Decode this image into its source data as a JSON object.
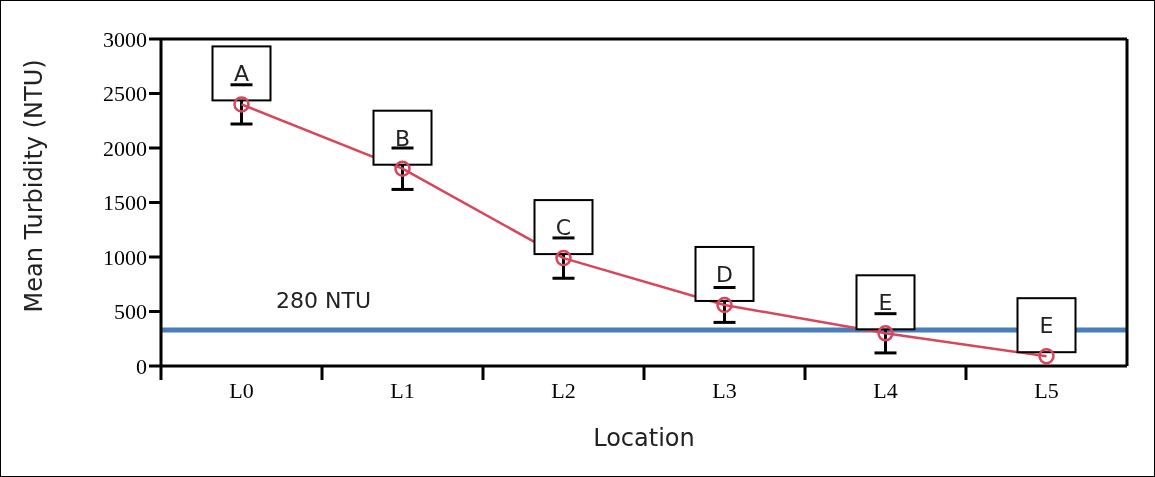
{
  "chart_data": {
    "type": "line",
    "xlabel": "Location",
    "ylabel": "Mean Turbidity (NTU)",
    "categories": [
      "L0",
      "L1",
      "L2",
      "L3",
      "L4",
      "L5"
    ],
    "series": [
      {
        "color": "#d9455a",
        "values": [
          2400,
          1810,
          990,
          560,
          300,
          90
        ],
        "errors": [
          180,
          190,
          185,
          160,
          180,
          null
        ]
      }
    ],
    "ylim": [
      0,
      3000
    ],
    "yticks": [
      0,
      500,
      1000,
      1500,
      2000,
      2500,
      3000
    ],
    "grid": false,
    "marker": "circle",
    "line_style": "solid",
    "ref_lines": [
      {
        "axis": "y",
        "value": 330,
        "label": "280 NTU",
        "color": "#4a7ebb"
      }
    ],
    "annotations": [
      {
        "text": "A",
        "x": "L0",
        "y": 2400
      },
      {
        "text": "B",
        "x": "L1",
        "y": 1810
      },
      {
        "text": "C",
        "x": "L2",
        "y": 990
      },
      {
        "text": "D",
        "x": "L3",
        "y": 560
      },
      {
        "text": "E",
        "x": "L4",
        "y": 300
      },
      {
        "text": "E",
        "x": "L5",
        "y": 90
      }
    ]
  }
}
